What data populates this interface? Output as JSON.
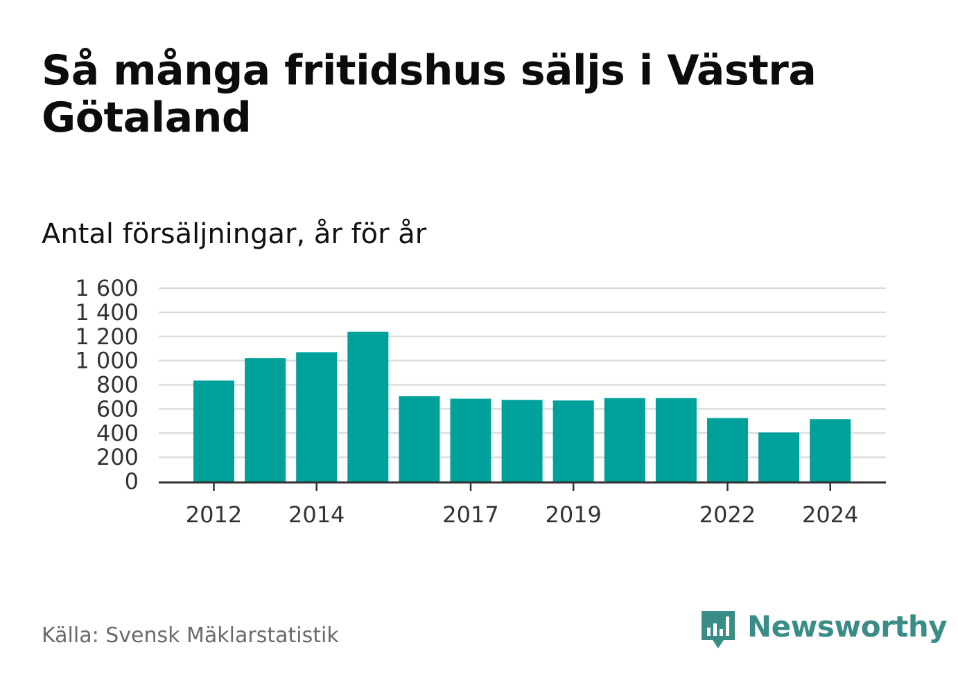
{
  "title": "Så många fritidshus säljs i Västra Götaland",
  "subtitle": "Antal försäljningar, år för år",
  "source": "Källa: Svensk Mäklarstatistik",
  "brand": {
    "name": "Newsworthy",
    "icon": "newsworthy-logo-icon",
    "color": "#3a8d86"
  },
  "colors": {
    "bar": "#00a19a",
    "grid": "#dcdcdc",
    "axis": "#333333",
    "tick_text": "#333333"
  },
  "chart_data": {
    "type": "bar",
    "title": "Så många fritidshus säljs i Västra Götaland",
    "subtitle": "Antal försäljningar, år för år",
    "xlabel": "",
    "ylabel": "",
    "categories": [
      "2012",
      "2013",
      "2014",
      "2015",
      "2016",
      "2017",
      "2018",
      "2019",
      "2020",
      "2021",
      "2022",
      "2023",
      "2024"
    ],
    "values": [
      835,
      1020,
      1070,
      1240,
      705,
      685,
      675,
      670,
      690,
      690,
      525,
      405,
      515
    ],
    "x_tick_labels": [
      "2012",
      "2014",
      "2017",
      "2019",
      "2022",
      "2024"
    ],
    "y_ticks": [
      0,
      200,
      400,
      600,
      800,
      1000,
      1200,
      1400,
      1600
    ],
    "y_tick_labels": [
      "0",
      "200",
      "400",
      "600",
      "800",
      "1 000",
      "1 200",
      "1 400",
      "1 600"
    ],
    "ylim": [
      0,
      1600
    ],
    "grid": true,
    "legend": "none"
  }
}
